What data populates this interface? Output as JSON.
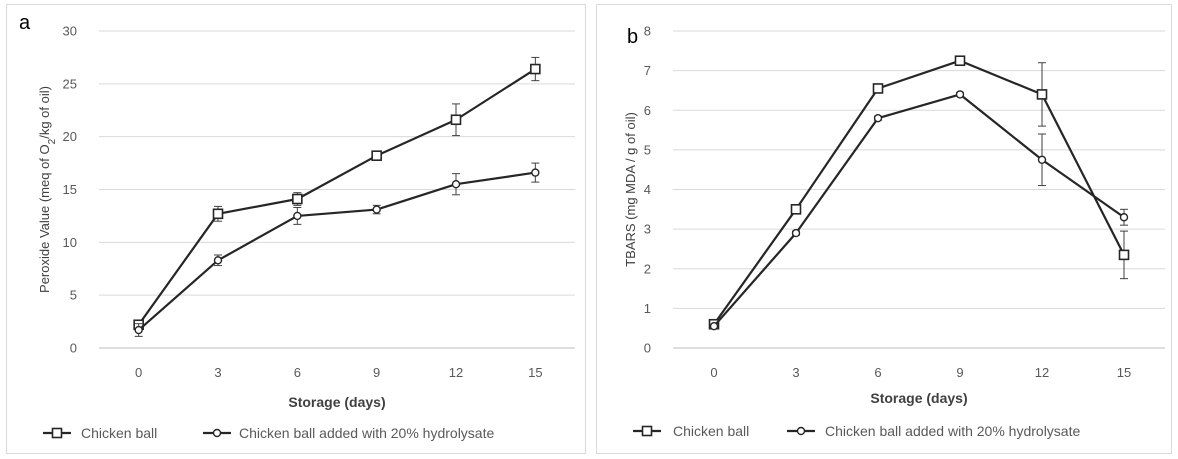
{
  "chart_data": [
    {
      "type": "line",
      "panel_label": "a",
      "x": [
        "0",
        "3",
        "6",
        "9",
        "12",
        "15"
      ],
      "xlabel": "Storage (days)",
      "ylabel": {
        "prefix": "Peroxide Value (meq of O",
        "sub": "2",
        "suffix": "/kg of oil)"
      },
      "ylim": [
        0,
        30
      ],
      "yticks": [
        "0",
        "5",
        "10",
        "15",
        "20",
        "25",
        "30"
      ],
      "grid": true,
      "legend_position": "bottom",
      "series": [
        {
          "name": "Chicken ball",
          "marker": "square",
          "values": [
            2.2,
            12.7,
            14.1,
            18.2,
            21.6,
            26.4
          ],
          "errors": [
            0.4,
            0.7,
            0.6,
            0.3,
            1.5,
            1.1
          ]
        },
        {
          "name": "Chicken ball added with 20% hydrolysate",
          "marker": "circle",
          "values": [
            1.7,
            8.3,
            12.5,
            13.1,
            15.5,
            16.6
          ],
          "errors": [
            0.6,
            0.5,
            0.8,
            0.4,
            1.0,
            0.9
          ]
        }
      ]
    },
    {
      "type": "line",
      "panel_label": "b",
      "x": [
        "0",
        "3",
        "6",
        "9",
        "12",
        "15"
      ],
      "xlabel": "Storage (days)",
      "ylabel": {
        "prefix": "TBARS  (mg MDA / g of oil)",
        "sub": "",
        "suffix": ""
      },
      "ylim": [
        0,
        8
      ],
      "yticks": [
        "0",
        "1",
        "2",
        "3",
        "4",
        "5",
        "6",
        "7",
        "8"
      ],
      "grid": true,
      "legend_position": "bottom",
      "series": [
        {
          "name": "Chicken ball",
          "marker": "square",
          "values": [
            0.6,
            3.5,
            6.55,
            7.25,
            6.4,
            2.35
          ],
          "errors": [
            0.05,
            0.05,
            0.05,
            0.1,
            0.8,
            0.6
          ]
        },
        {
          "name": "Chicken ball added with 20% hydrolysate",
          "marker": "circle",
          "values": [
            0.55,
            2.9,
            5.8,
            6.4,
            4.75,
            3.3
          ],
          "errors": [
            0.05,
            0.05,
            0.05,
            0.05,
            0.65,
            0.2
          ]
        }
      ]
    }
  ]
}
